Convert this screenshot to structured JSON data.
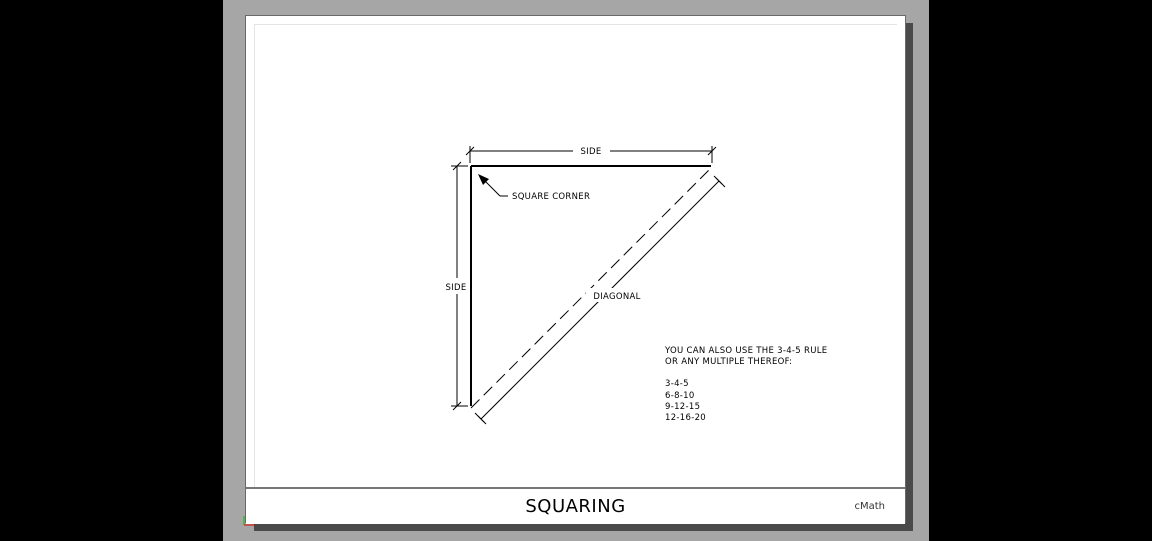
{
  "title_block": {
    "title": "SQUARING",
    "brand": "cMath"
  },
  "labels": {
    "side_top": "SIDE",
    "side_left": "SIDE",
    "square_corner": "SQUARE CORNER",
    "diagonal": "DIAGONAL"
  },
  "note": {
    "line1": "YOU CAN ALSO USE THE 3-4-5 RULE",
    "line2": "OR ANY MULTIPLE THEREOF:",
    "multiples": [
      "3-4-5",
      "6-8-10",
      "9-12-15",
      "12-16-20"
    ]
  },
  "colors": {
    "background": "#000000",
    "viewport": "#a6a6a6",
    "sheet": "#ffffff",
    "ink": "#000000"
  }
}
